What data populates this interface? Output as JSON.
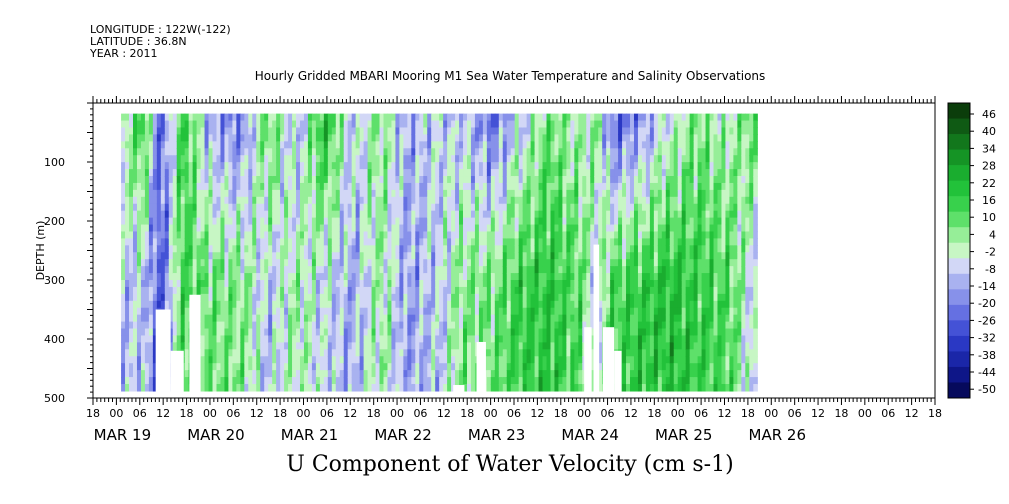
{
  "header": {
    "longitude": "LONGITUDE : 122W(-122)",
    "latitude": "LATITUDE : 36.8N",
    "year": "YEAR : 2011"
  },
  "chart_data": {
    "type": "heatmap",
    "title": "Hourly Gridded MBARI Mooring M1 Sea Water Temperature and Salinity Observations",
    "xlabel": "U Component of Water Velocity (cm s-1)",
    "ylabel": "DEPTH (m)",
    "ylim": [
      500,
      0
    ],
    "y_ticks": [
      100,
      200,
      300,
      400,
      500
    ],
    "x_hour_ticks": [
      "18",
      "00",
      "06",
      "12",
      "18",
      "00",
      "06",
      "12",
      "18",
      "00",
      "06",
      "12",
      "18",
      "00",
      "06",
      "12",
      "18",
      "00",
      "06",
      "12",
      "18",
      "00",
      "06",
      "12",
      "18",
      "00",
      "06",
      "12",
      "18",
      "00",
      "06",
      "12",
      "18",
      "00",
      "06",
      "12",
      "18"
    ],
    "x_day_labels": [
      "MAR 19",
      "MAR 20",
      "MAR 21",
      "MAR 22",
      "MAR 23",
      "MAR 24",
      "MAR 25",
      "MAR 26"
    ],
    "colorbar": {
      "labels": [
        "46",
        "40",
        "34",
        "28",
        "22",
        "16",
        "10",
        "4",
        "-2",
        "-8",
        "-14",
        "-20",
        "-26",
        "-32",
        "-38",
        "-44",
        "-50"
      ],
      "colors": [
        "#0b3d0b",
        "#0f5a14",
        "#12771c",
        "#159425",
        "#1aad2f",
        "#22c23a",
        "#38d14c",
        "#5ee06a",
        "#96ee98",
        "#c7f6c4",
        "#d2d7f6",
        "#a9b2f0",
        "#8791ea",
        "#6570e2",
        "#4452d6",
        "#2a38c4",
        "#1a26a8",
        "#0e1688",
        "#060a5c"
      ],
      "range": [
        -50,
        52
      ]
    },
    "grid": false,
    "legend": "right",
    "notes": "Field of U velocity vs time and depth; alternating bands: green (eastward, positive) dominant near MAR 19-20 surface, MAR 20-21 deep, MAR 22 surface, MAR 24-26 mid/deep; blue (westward, negative) near MAR 20 12h, MAR 21-22, MAR 23, MAR 25 surface.",
    "bands": [
      {
        "day": 0.05,
        "top": 5,
        "bot": -8
      },
      {
        "day": 0.25,
        "top": 18,
        "bot": -6
      },
      {
        "day": 0.45,
        "top": -20,
        "bot": -22
      },
      {
        "day": 0.7,
        "top": 16,
        "bot": 14
      },
      {
        "day": 1.0,
        "top": -12,
        "bot": 10
      },
      {
        "day": 1.3,
        "top": -18,
        "bot": 8
      },
      {
        "day": 1.6,
        "top": 12,
        "bot": -6
      },
      {
        "day": 1.9,
        "top": -8,
        "bot": 4
      },
      {
        "day": 2.2,
        "top": 22,
        "bot": -4
      },
      {
        "day": 2.5,
        "top": -4,
        "bot": -10
      },
      {
        "day": 2.8,
        "top": 6,
        "bot": 4
      },
      {
        "day": 3.1,
        "top": -10,
        "bot": -12
      },
      {
        "day": 3.4,
        "top": -4,
        "bot": -6
      },
      {
        "day": 3.7,
        "top": -8,
        "bot": 8
      },
      {
        "day": 4.0,
        "top": -20,
        "bot": 10
      },
      {
        "day": 4.3,
        "top": -6,
        "bot": 18
      },
      {
        "day": 4.6,
        "top": 10,
        "bot": 20
      },
      {
        "day": 4.9,
        "top": 2,
        "bot": 14
      },
      {
        "day": 5.1,
        "top": 6,
        "bot": -2
      },
      {
        "day": 5.3,
        "top": -22,
        "bot": 16
      },
      {
        "day": 5.6,
        "top": -16,
        "bot": 20
      },
      {
        "day": 5.9,
        "top": -2,
        "bot": 22
      },
      {
        "day": 6.2,
        "top": 8,
        "bot": 18
      },
      {
        "day": 6.5,
        "top": 2,
        "bot": 14
      },
      {
        "day": 6.8,
        "top": 12,
        "bot": -4
      }
    ]
  }
}
